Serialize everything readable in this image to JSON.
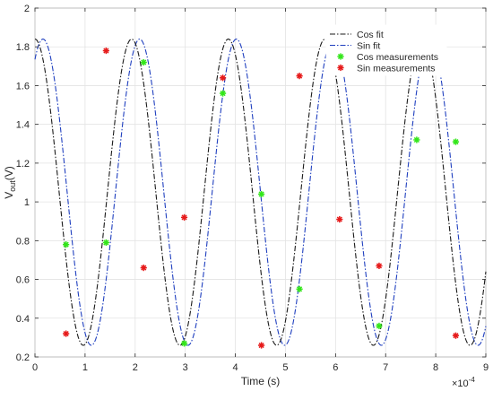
{
  "chart_data": {
    "type": "scatter",
    "xlabel": "Time (s)",
    "ylabel": "V",
    "ylabel_sub": "out",
    "ylabel_unit": "(V)",
    "x_exponent_base": "×10",
    "x_exponent": "-4",
    "xlim": [
      0,
      9
    ],
    "ylim": [
      0.2,
      2
    ],
    "x_ticks": [
      "0",
      "1",
      "2",
      "3",
      "4",
      "5",
      "6",
      "7",
      "8",
      "9"
    ],
    "y_ticks": [
      "0.2",
      "0.4",
      "0.6",
      "0.8",
      "1",
      "1.2",
      "1.4",
      "1.6",
      "1.8",
      "2"
    ],
    "grid": true,
    "legend_position": "top-right",
    "fit": {
      "offset": 1.05,
      "amplitude": 0.79,
      "period": 1.93,
      "cos_peak_x": 0.0,
      "sin_peak_x": 2.09,
      "units": "×10^-4 s"
    },
    "series": [
      {
        "name": "Cos fit",
        "kind": "line",
        "style": "dashdot",
        "color": "#1a1a1a"
      },
      {
        "name": "Sin fit",
        "kind": "line",
        "style": "dashdot",
        "color": "#1f3fbf"
      },
      {
        "name": "Cos measurements",
        "kind": "marker",
        "color": "#33e61a",
        "points": [
          [
            0.62,
            0.78
          ],
          [
            1.42,
            0.79
          ],
          [
            2.17,
            1.72
          ],
          [
            2.98,
            0.27
          ],
          [
            3.75,
            1.56
          ],
          [
            4.52,
            1.04
          ],
          [
            5.28,
            0.55
          ],
          [
            6.87,
            0.36
          ],
          [
            7.62,
            1.32
          ],
          [
            8.4,
            1.31
          ]
        ]
      },
      {
        "name": "Sin measurements",
        "kind": "marker",
        "color": "#e61a1a",
        "points": [
          [
            0.62,
            0.32
          ],
          [
            1.42,
            1.78
          ],
          [
            2.17,
            0.66
          ],
          [
            2.98,
            0.92
          ],
          [
            3.75,
            1.64
          ],
          [
            4.52,
            0.26
          ],
          [
            5.28,
            1.65
          ],
          [
            6.08,
            0.91
          ],
          [
            6.87,
            0.67
          ],
          [
            8.4,
            0.31
          ]
        ]
      }
    ]
  }
}
